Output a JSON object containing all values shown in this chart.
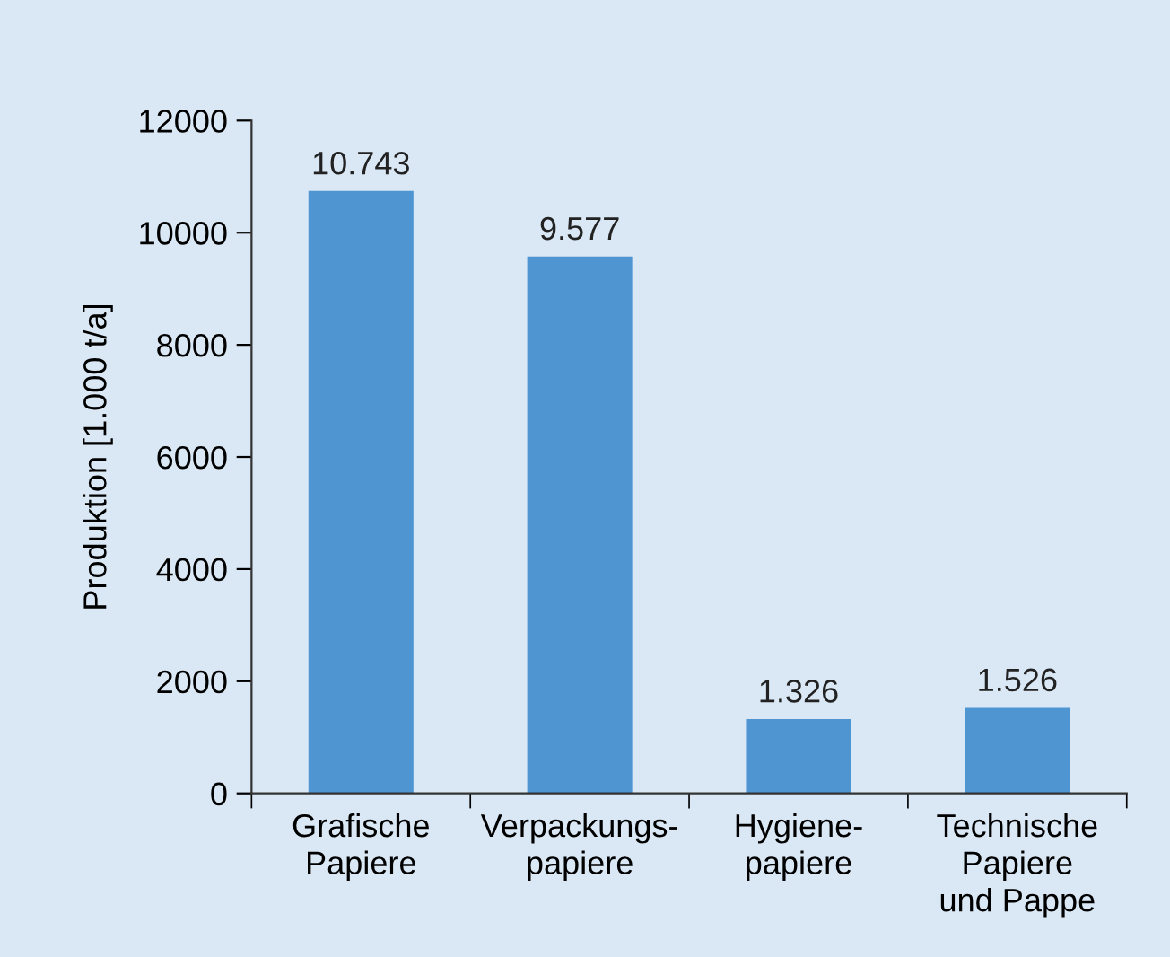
{
  "chart_data": {
    "type": "bar",
    "ylabel": "Produktion [1.000 t/a]",
    "categories": [
      "Grafische\nPapiere",
      "Verpackungs-\npapiere",
      "Hygiene-\npapiere",
      "Technische\nPapiere\nund Pappe"
    ],
    "values": [
      10743,
      9577,
      1326,
      1526
    ],
    "value_labels": [
      "10.743",
      "9.577",
      "1.326",
      "1.526"
    ],
    "color": "#4f95d1",
    "ylim": [
      0,
      12000
    ],
    "yticks": [
      0,
      2000,
      4000,
      6000,
      8000,
      10000,
      12000
    ],
    "grid": false,
    "legend": false
  }
}
